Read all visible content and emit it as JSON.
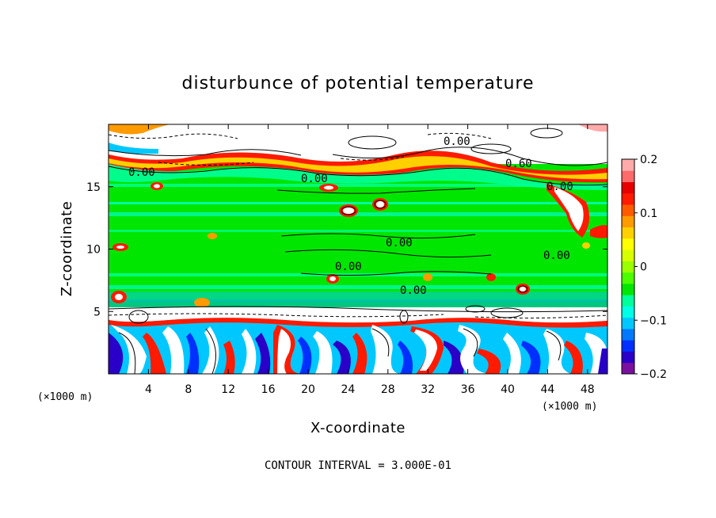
{
  "chart_data": {
    "type": "heatmap",
    "title": "disturbunce of potential temperature",
    "xlabel": "X-coordinate",
    "ylabel": "Z-coordinate",
    "x_unit": "(×1000 m)",
    "xlim": [
      0,
      50
    ],
    "ylim": [
      0,
      20
    ],
    "x_ticks": [
      4,
      8,
      12,
      16,
      20,
      24,
      28,
      32,
      36,
      40,
      44,
      48
    ],
    "y_ticks": [
      5,
      10,
      15
    ],
    "colorbar": {
      "range": [
        -0.2,
        0.2
      ],
      "ticks": [
        "0.2",
        "0.1",
        "0",
        "−0.1",
        "−0.2"
      ],
      "colors": [
        "#7b0fa0",
        "#2a00c8",
        "#0030ff",
        "#0078ff",
        "#00c8ff",
        "#00ffe6",
        "#00ff9a",
        "#00e600",
        "#4cff00",
        "#9aff00",
        "#d8ff00",
        "#ffff00",
        "#ffd000",
        "#ff9a00",
        "#ff5a00",
        "#ff1a00",
        "#e60000",
        "#ff6a6a",
        "#ffaaaa"
      ]
    },
    "contour_labels": [
      "0.00",
      "0.00",
      "0.60",
      "0.00",
      "0.00",
      "0.00",
      "0.00",
      "0.00",
      "0.00"
    ],
    "contour_interval": "CONTOUR INTERVAL = 3.000E-01"
  }
}
